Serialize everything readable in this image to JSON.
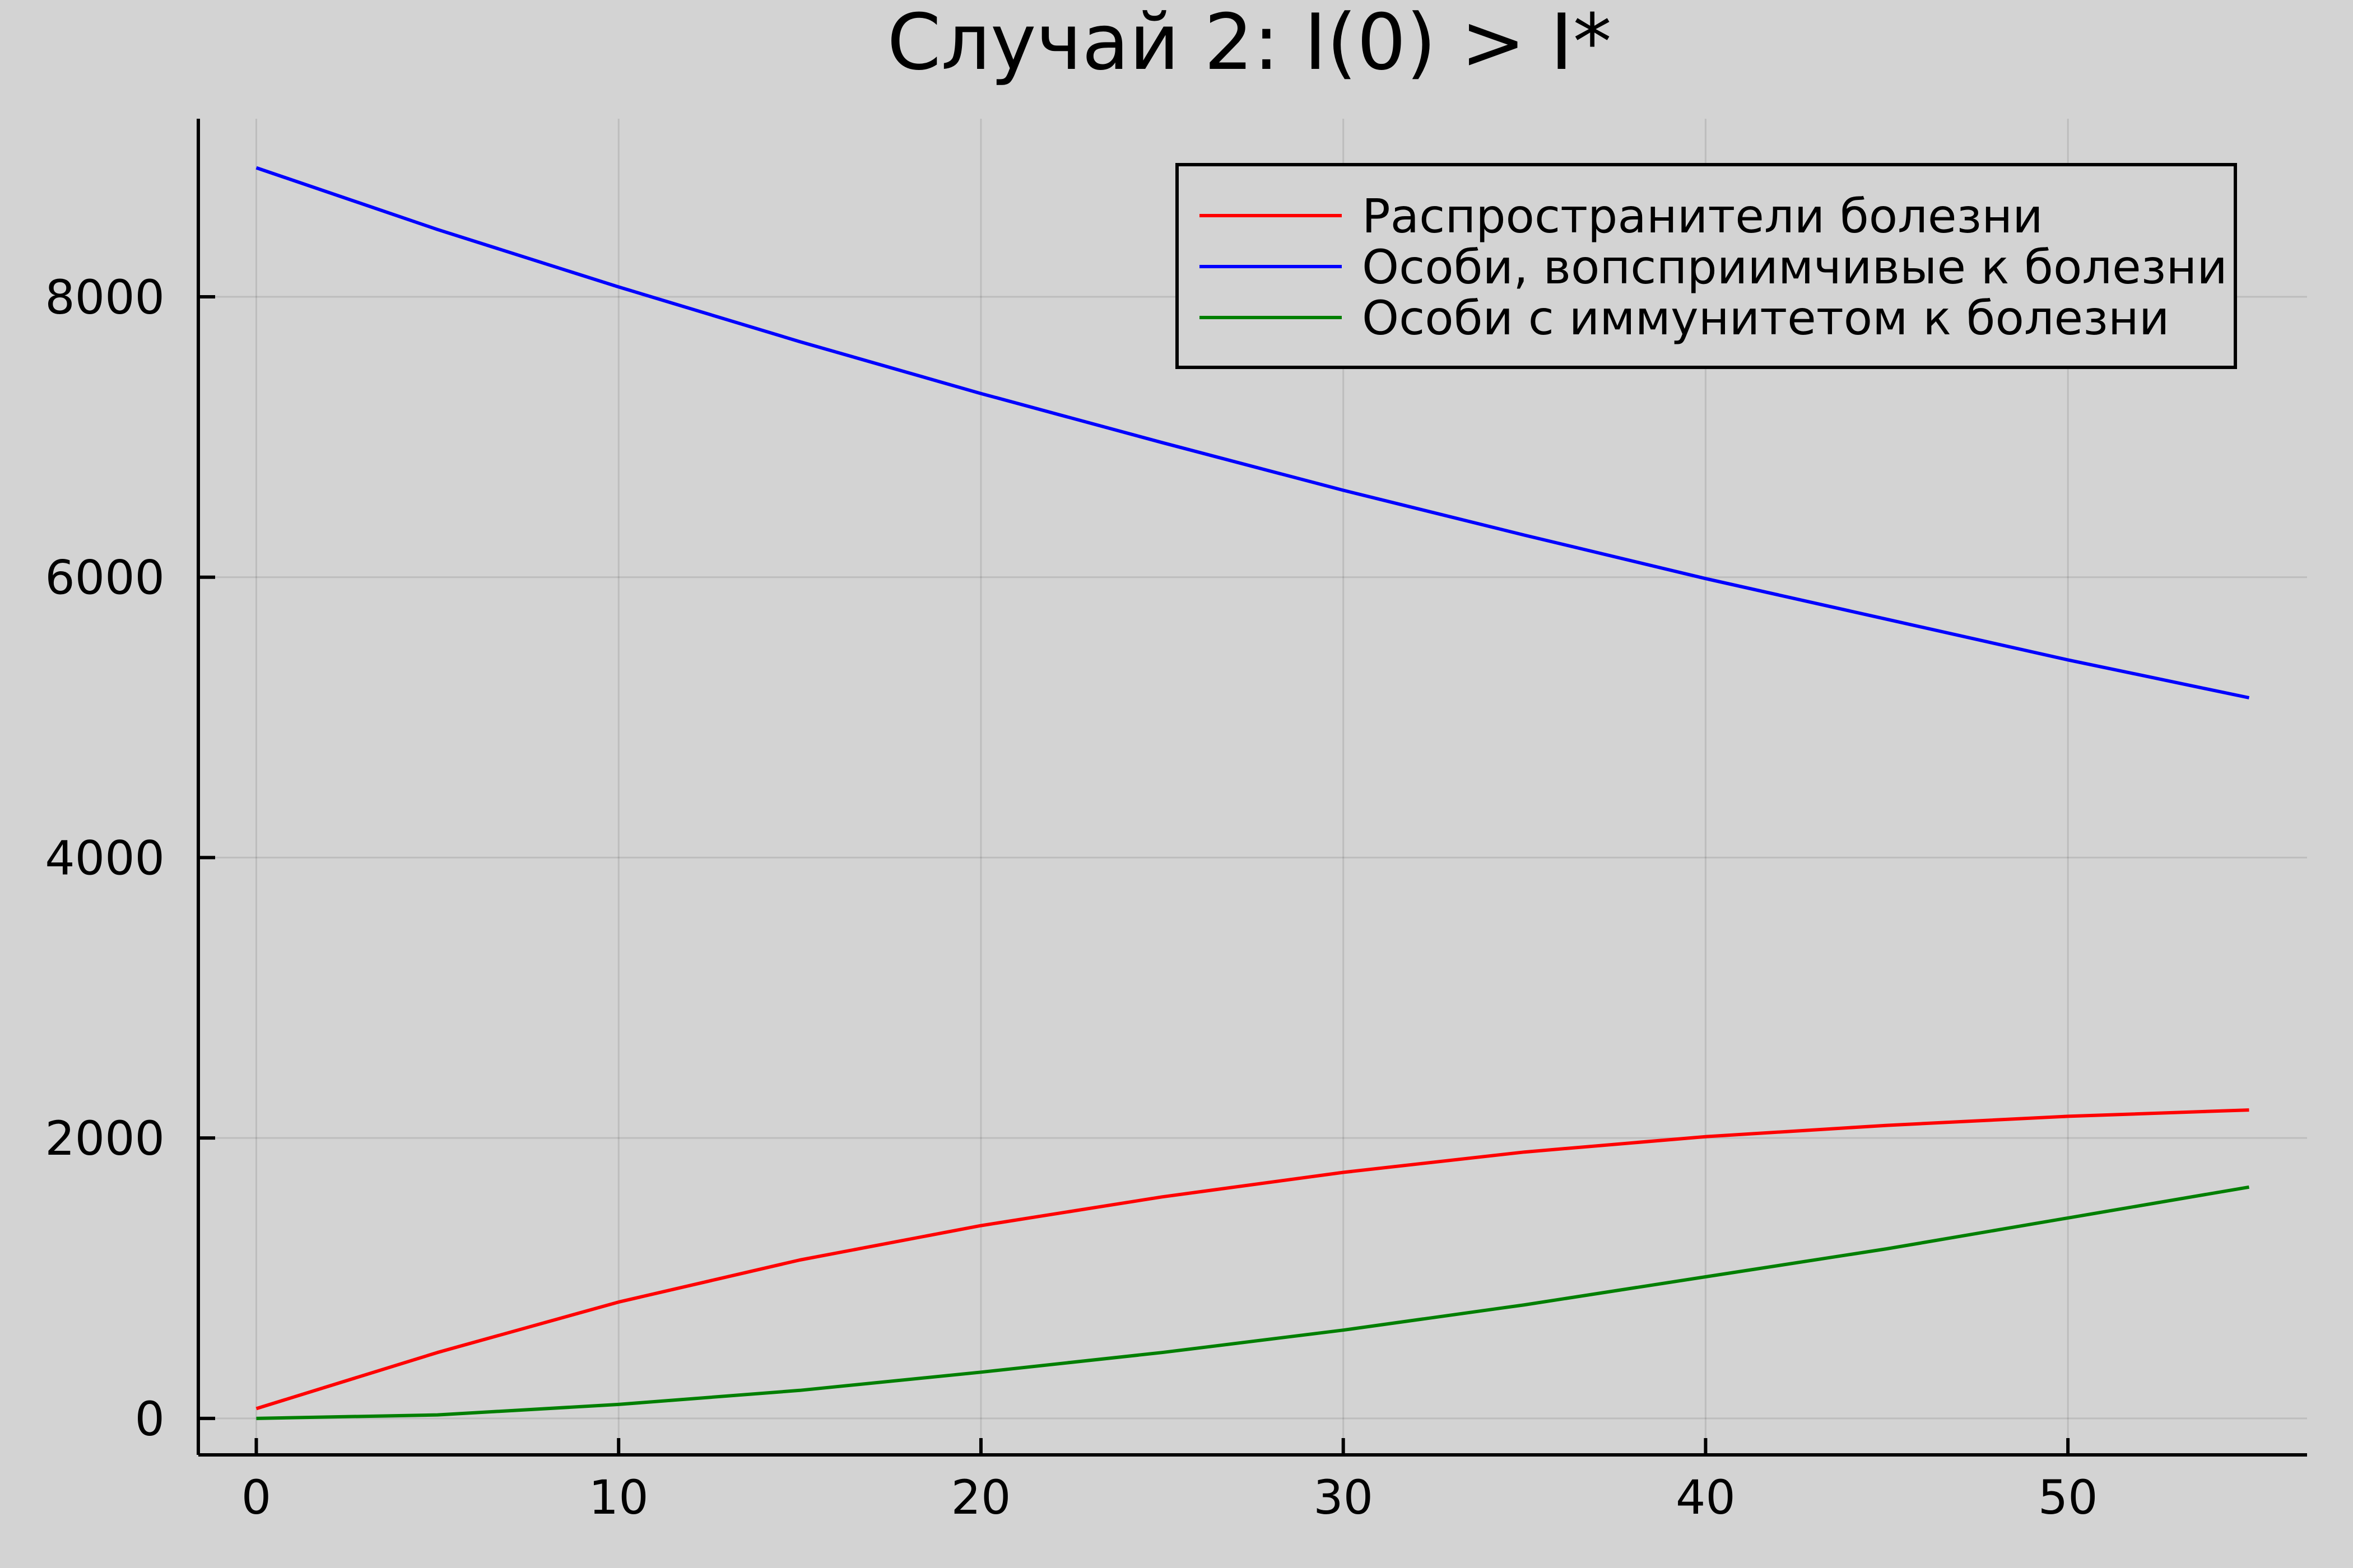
{
  "chart_data": {
    "type": "line",
    "title": "Случай 2: I(0) > I*",
    "xlabel": "",
    "ylabel": "",
    "xlim": [
      -1.6,
      56.6
    ],
    "ylim": [
      -260,
      9270
    ],
    "x_ticks": [
      0,
      10,
      20,
      30,
      40,
      50
    ],
    "y_ticks": [
      0,
      2000,
      4000,
      6000,
      8000
    ],
    "grid": true,
    "legend_position": "top-right",
    "x": [
      0,
      5,
      10,
      15,
      20,
      25,
      30,
      35,
      40,
      45,
      50,
      55
    ],
    "series": [
      {
        "name": "Распространители болезни",
        "color": "#ff0000",
        "values": [
          70,
          470,
          830,
          1130,
          1375,
          1580,
          1755,
          1900,
          2010,
          2090,
          2155,
          2200
        ]
      },
      {
        "name": "Особи, вопсприимчивые к болезни",
        "color": "#0000ff",
        "values": [
          8920,
          8480,
          8070,
          7680,
          7310,
          6960,
          6620,
          6300,
          5990,
          5700,
          5410,
          5140
        ]
      },
      {
        "name": "Особи с иммунитетом к болезни",
        "color": "#007f00",
        "values": [
          0,
          25,
          100,
          200,
          330,
          470,
          630,
          810,
          1010,
          1210,
          1430,
          1650
        ]
      }
    ]
  }
}
